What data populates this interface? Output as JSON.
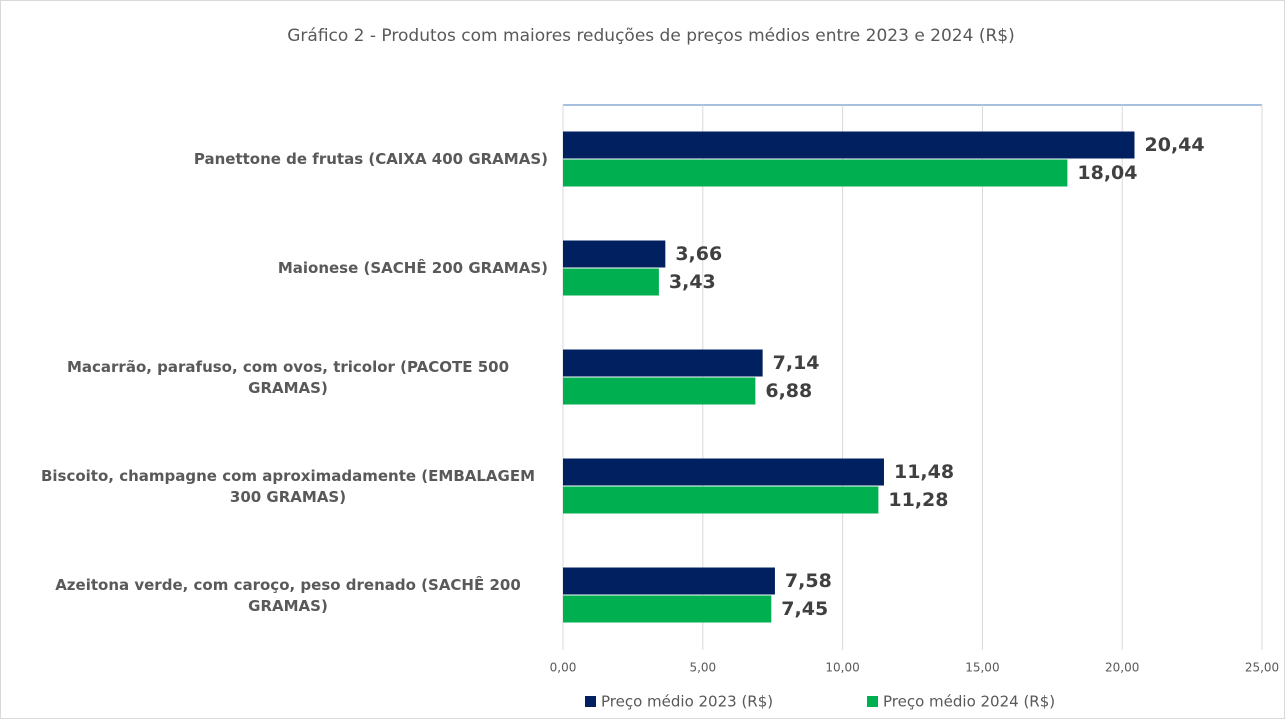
{
  "chart_data": {
    "type": "barh",
    "title": "Gráfico 2 - Produtos com maiores reduções de preços médios entre 2023 e 2024 (R$)",
    "categories": [
      "Panettone de frutas (CAIXA 400 GRAMAS)",
      "Maionese (SACHÊ 200 GRAMAS)",
      "Macarrão, parafuso, com ovos, tricolor (PACOTE 500 GRAMAS)",
      "Biscoito, champagne com aproximadamente (EMBALAGEM 300 GRAMAS)",
      "Azeitona verde, com caroço, peso drenado (SACHÊ 200 GRAMAS)"
    ],
    "series": [
      {
        "name": "Preço médio 2023 (R$)",
        "color": "#002060",
        "values": [
          20.44,
          3.66,
          7.14,
          11.48,
          7.58
        ],
        "value_labels": [
          "20,44",
          "3,66",
          "7,14",
          "11,48",
          "7,58"
        ]
      },
      {
        "name": "Preço médio 2024 (R$)",
        "color": "#00b050",
        "values": [
          18.04,
          3.43,
          6.88,
          11.28,
          7.45
        ],
        "value_labels": [
          "18,04",
          "3,43",
          "6,88",
          "11,28",
          "7,45"
        ]
      }
    ],
    "xlim": [
      0,
      25
    ],
    "xticks": [
      {
        "value": 0,
        "label": "0,00"
      },
      {
        "value": 5,
        "label": "5,00"
      },
      {
        "value": 10,
        "label": "10,00"
      },
      {
        "value": 15,
        "label": "15,00"
      },
      {
        "value": 20,
        "label": "20,00"
      },
      {
        "value": 25,
        "label": "25,00"
      }
    ],
    "grid": true,
    "legend": "bottom"
  }
}
